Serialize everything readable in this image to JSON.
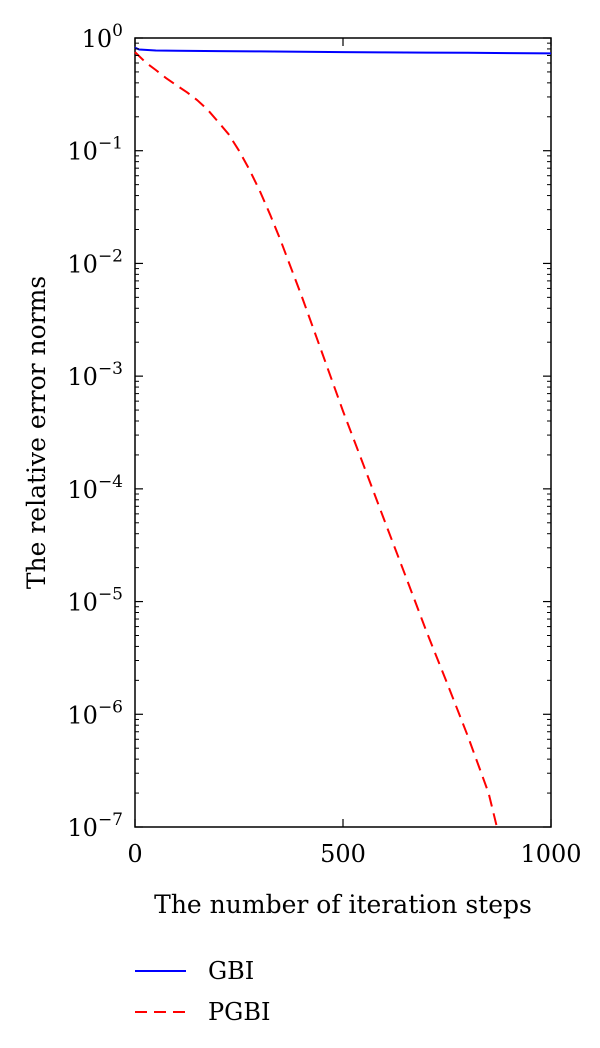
{
  "chart_data": {
    "type": "line",
    "title": "",
    "xlabel": "The number of iteration steps",
    "ylabel": "The relative error norms",
    "xlim": [
      0,
      1000
    ],
    "ylim": [
      1e-07,
      1
    ],
    "yscale": "log",
    "grid": false,
    "legend_position": "below",
    "x_ticks": [
      0,
      500,
      1000
    ],
    "x_tick_labels": [
      "0",
      "500",
      "1000"
    ],
    "y_ticks": [
      1,
      0.1,
      0.01,
      0.001,
      0.0001,
      1e-05,
      1e-06,
      1e-07
    ],
    "y_tick_labels": [
      {
        "base": "10",
        "exp": "0"
      },
      {
        "base": "10",
        "exp": "−1"
      },
      {
        "base": "10",
        "exp": "−2"
      },
      {
        "base": "10",
        "exp": "−3"
      },
      {
        "base": "10",
        "exp": "−4"
      },
      {
        "base": "10",
        "exp": "−5"
      },
      {
        "base": "10",
        "exp": "−6"
      },
      {
        "base": "10",
        "exp": "−7"
      }
    ],
    "series": [
      {
        "name": "GBI",
        "color": "#0000ff",
        "dash": "solid",
        "x": [
          0,
          10,
          50,
          100,
          200,
          300,
          400,
          500,
          600,
          700,
          800,
          900,
          1000
        ],
        "y": [
          0.82,
          0.79,
          0.775,
          0.77,
          0.765,
          0.76,
          0.755,
          0.75,
          0.745,
          0.742,
          0.739,
          0.735,
          0.73
        ]
      },
      {
        "name": "PGBI",
        "color": "#ff0000",
        "dash": "dashed",
        "x": [
          0,
          25,
          50,
          75,
          100,
          125,
          150,
          175,
          200,
          225,
          250,
          275,
          300,
          325,
          350,
          400,
          450,
          500,
          550,
          600,
          650,
          700,
          750,
          800,
          850,
          870
        ],
        "y": [
          0.75,
          0.61,
          0.52,
          0.44,
          0.38,
          0.33,
          0.28,
          0.23,
          0.18,
          0.14,
          0.1,
          0.068,
          0.044,
          0.027,
          0.016,
          0.0052,
          0.0016,
          0.00049,
          0.00016,
          5.2e-05,
          1.7e-05,
          5.5e-06,
          1.9e-06,
          6.4e-07,
          2e-07,
          1e-07
        ]
      }
    ]
  }
}
